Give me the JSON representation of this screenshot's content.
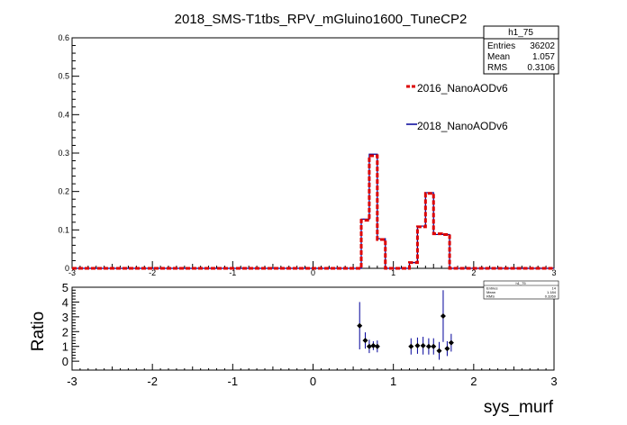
{
  "chart_data": [
    {
      "type": "histogram",
      "title": "2018_SMS-T1tbs_RPV_mGluino1600_TuneCP2",
      "xlabel": "",
      "ylabel": "",
      "xlim": [
        -3,
        3
      ],
      "ylim": [
        0,
        0.6
      ],
      "x_tick_labels": [
        "-3",
        "-2",
        "-1",
        "0",
        "1",
        "2",
        "3"
      ],
      "y_tick_labels": [
        "0",
        "0.1",
        "0.2",
        "0.3",
        "0.4",
        "0.5",
        "0.6"
      ],
      "bin_width": 0.1,
      "series": [
        {
          "name": "2016_NanoAODv6",
          "color": "#dd0000",
          "style": "dashed",
          "bins": [
            {
              "x": 0.55,
              "y": 0.0
            },
            {
              "x": 0.65,
              "y": 0.125
            },
            {
              "x": 0.75,
              "y": 0.293
            },
            {
              "x": 0.85,
              "y": 0.075
            },
            {
              "x": 0.95,
              "y": 0.0
            },
            {
              "x": 1.05,
              "y": 0.0
            },
            {
              "x": 1.15,
              "y": 0.0
            },
            {
              "x": 1.25,
              "y": 0.015
            },
            {
              "x": 1.35,
              "y": 0.108
            },
            {
              "x": 1.45,
              "y": 0.195
            },
            {
              "x": 1.55,
              "y": 0.09
            },
            {
              "x": 1.65,
              "y": 0.088
            },
            {
              "x": 1.75,
              "y": 0.0
            }
          ]
        },
        {
          "name": "2018_NanoAODv6",
          "color": "#000099",
          "style": "solid",
          "bins": [
            {
              "x": 0.55,
              "y": 0.0
            },
            {
              "x": 0.65,
              "y": 0.128
            },
            {
              "x": 0.75,
              "y": 0.297
            },
            {
              "x": 0.85,
              "y": 0.077
            },
            {
              "x": 0.95,
              "y": 0.0
            },
            {
              "x": 1.05,
              "y": 0.0
            },
            {
              "x": 1.15,
              "y": 0.0
            },
            {
              "x": 1.25,
              "y": 0.015
            },
            {
              "x": 1.35,
              "y": 0.11
            },
            {
              "x": 1.45,
              "y": 0.197
            },
            {
              "x": 1.55,
              "y": 0.088
            },
            {
              "x": 1.65,
              "y": 0.088
            },
            {
              "x": 1.75,
              "y": 0.0
            }
          ]
        }
      ],
      "stats_box": {
        "name": "h1_75",
        "rows": [
          {
            "label": "Entries",
            "value": "36202"
          },
          {
            "label": "Mean",
            "value": "1.057"
          },
          {
            "label": "RMS",
            "value": "0.3106"
          }
        ]
      }
    },
    {
      "type": "scatter",
      "title": "",
      "xlabel": "sys_murf",
      "ylabel": "Ratio",
      "xlim": [
        -3,
        3
      ],
      "ylim": [
        -0.6,
        5
      ],
      "x_tick_labels": [
        "-3",
        "-2",
        "-1",
        "0",
        "1",
        "2",
        "3"
      ],
      "y_tick_labels": [
        "0",
        "1",
        "2",
        "3",
        "4",
        "5"
      ],
      "color": "#000000",
      "error_color": "#000099",
      "points": [
        {
          "x": 0.58,
          "y": 2.4,
          "err": 1.6
        },
        {
          "x": 0.65,
          "y": 1.4,
          "err": 0.55
        },
        {
          "x": 0.7,
          "y": 1.0,
          "err": 0.45
        },
        {
          "x": 0.75,
          "y": 1.05,
          "err": 0.3
        },
        {
          "x": 0.8,
          "y": 1.0,
          "err": 0.4
        },
        {
          "x": 1.22,
          "y": 1.0,
          "err": 0.55
        },
        {
          "x": 1.3,
          "y": 1.05,
          "err": 0.55
        },
        {
          "x": 1.37,
          "y": 1.05,
          "err": 0.6
        },
        {
          "x": 1.44,
          "y": 1.0,
          "err": 0.55
        },
        {
          "x": 1.5,
          "y": 1.0,
          "err": 0.55
        },
        {
          "x": 1.57,
          "y": 0.7,
          "err": 0.6
        },
        {
          "x": 1.62,
          "y": 3.05,
          "err": 1.75
        },
        {
          "x": 1.67,
          "y": 0.85,
          "err": 0.5
        },
        {
          "x": 1.72,
          "y": 1.25,
          "err": 0.6
        }
      ],
      "stats_box": {
        "name": "h1_75",
        "rows": [
          {
            "label": "Entries",
            "value": "14"
          },
          {
            "label": "Mean",
            "value": "1.184"
          },
          {
            "label": "RMS",
            "value": "0.3269"
          }
        ]
      }
    }
  ]
}
